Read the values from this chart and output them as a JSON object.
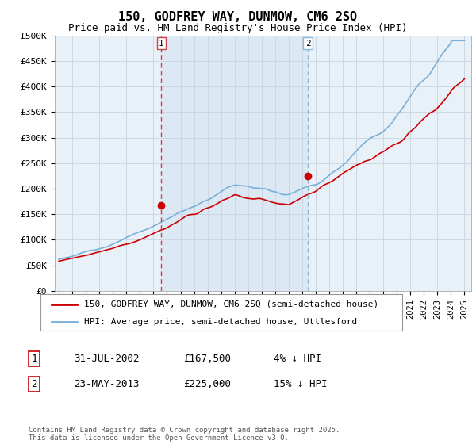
{
  "title": "150, GODFREY WAY, DUNMOW, CM6 2SQ",
  "subtitle": "Price paid vs. HM Land Registry's House Price Index (HPI)",
  "title_fontsize": 11,
  "subtitle_fontsize": 9,
  "background_color": "#ffffff",
  "plot_bg_color": "#e8f0f8",
  "grid_color": "#c8d4e0",
  "red_color": "#cc0000",
  "blue_color": "#7ab0d8",
  "vline1_x": 2002.58,
  "vline2_x": 2013.42,
  "vline1_color": "#cc4444",
  "vline2_color": "#8ab8d8",
  "shade_color": "#dce8f4",
  "ylim": [
    0,
    500000
  ],
  "yticks": [
    0,
    50000,
    100000,
    150000,
    200000,
    250000,
    300000,
    350000,
    400000,
    450000,
    500000
  ],
  "ytick_labels": [
    "£0",
    "£50K",
    "£100K",
    "£150K",
    "£200K",
    "£250K",
    "£300K",
    "£350K",
    "£400K",
    "£450K",
    "£500K"
  ],
  "xlim": [
    1994.7,
    2025.5
  ],
  "legend_red_label": "150, GODFREY WAY, DUNMOW, CM6 2SQ (semi-detached house)",
  "legend_blue_label": "HPI: Average price, semi-detached house, Uttlesford",
  "marker1_label": "1",
  "marker2_label": "2",
  "info1_num": "1",
  "info1_date": "31-JUL-2002",
  "info1_price": "£167,500",
  "info1_hpi": "4% ↓ HPI",
  "info2_num": "2",
  "info2_date": "23-MAY-2013",
  "info2_price": "£225,000",
  "info2_hpi": "15% ↓ HPI",
  "dot1_x": 2002.58,
  "dot1_y": 167500,
  "dot2_x": 2013.42,
  "dot2_y": 225000,
  "footer": "Contains HM Land Registry data © Crown copyright and database right 2025.\nThis data is licensed under the Open Government Licence v3.0."
}
